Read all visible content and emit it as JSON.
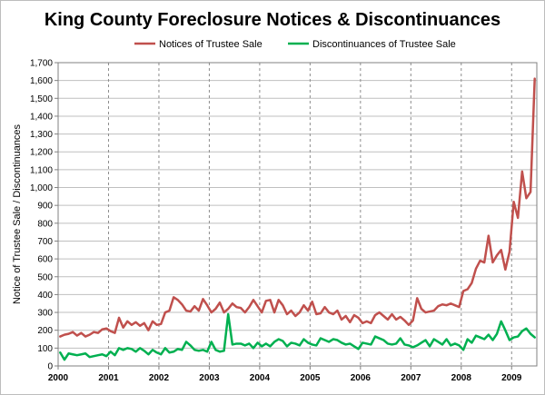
{
  "colors": {
    "notices": "#c0504d",
    "discontinuances": "#00b050",
    "grid": "#bfbfbf",
    "vgrid": "#8c8c8c",
    "axis": "#808080"
  },
  "chart_data": {
    "type": "line",
    "title": "King County Foreclosure Notices & Discontinuances",
    "xlabel": "",
    "ylabel": "Notice of Trustee Sale / Discontinuances",
    "ylim": [
      0,
      1700
    ],
    "yticks": [
      0,
      100,
      200,
      300,
      400,
      500,
      600,
      700,
      800,
      900,
      1000,
      1100,
      1200,
      1300,
      1400,
      1500,
      1600,
      1700
    ],
    "ytick_labels": [
      "0",
      "100",
      "200",
      "300",
      "400",
      "500",
      "600",
      "700",
      "800",
      "900",
      "1,000",
      "1,100",
      "1,200",
      "1,300",
      "1,400",
      "1,500",
      "1,600",
      "1,700"
    ],
    "xticks": [
      "2000",
      "2001",
      "2002",
      "2003",
      "2004",
      "2005",
      "2006",
      "2007",
      "2008",
      "2009"
    ],
    "x_start": "2000-01",
    "x_freq": "monthly",
    "grid": "horizontal and dashed vertical at each year",
    "legend": "top-center",
    "series": [
      {
        "name": "Notices of Trustee Sale",
        "color": "#c0504d",
        "values": [
          165,
          175,
          180,
          190,
          170,
          185,
          165,
          175,
          190,
          185,
          205,
          210,
          195,
          185,
          270,
          215,
          250,
          230,
          245,
          225,
          240,
          200,
          250,
          230,
          235,
          300,
          310,
          385,
          370,
          345,
          310,
          305,
          335,
          310,
          375,
          340,
          300,
          320,
          355,
          300,
          320,
          350,
          330,
          325,
          300,
          330,
          370,
          335,
          300,
          365,
          370,
          300,
          370,
          340,
          290,
          310,
          280,
          300,
          340,
          310,
          360,
          290,
          295,
          330,
          300,
          290,
          310,
          260,
          280,
          245,
          285,
          270,
          240,
          250,
          240,
          285,
          300,
          280,
          260,
          290,
          260,
          275,
          255,
          230,
          255,
          380,
          320,
          300,
          305,
          310,
          335,
          345,
          340,
          350,
          340,
          330,
          420,
          430,
          465,
          545,
          590,
          580,
          730,
          580,
          620,
          650,
          540,
          640,
          920,
          830,
          1090,
          940,
          975,
          1610
        ]
      },
      {
        "name": "Discontinuances of Trustee Sale",
        "color": "#00b050",
        "values": [
          75,
          35,
          70,
          65,
          60,
          65,
          70,
          50,
          55,
          60,
          65,
          55,
          80,
          60,
          100,
          90,
          100,
          95,
          80,
          100,
          85,
          65,
          90,
          75,
          65,
          100,
          75,
          80,
          95,
          90,
          135,
          115,
          90,
          85,
          90,
          80,
          135,
          90,
          80,
          85,
          290,
          120,
          125,
          125,
          115,
          125,
          100,
          130,
          110,
          125,
          110,
          135,
          150,
          140,
          110,
          130,
          125,
          115,
          150,
          130,
          120,
          115,
          155,
          145,
          135,
          150,
          145,
          130,
          120,
          125,
          110,
          95,
          130,
          125,
          120,
          165,
          155,
          145,
          125,
          120,
          125,
          155,
          120,
          115,
          105,
          115,
          130,
          145,
          110,
          150,
          135,
          120,
          150,
          115,
          125,
          115,
          90,
          150,
          130,
          170,
          160,
          150,
          175,
          145,
          180,
          250,
          200,
          145,
          160,
          165,
          195,
          210,
          180,
          160
        ]
      }
    ]
  }
}
